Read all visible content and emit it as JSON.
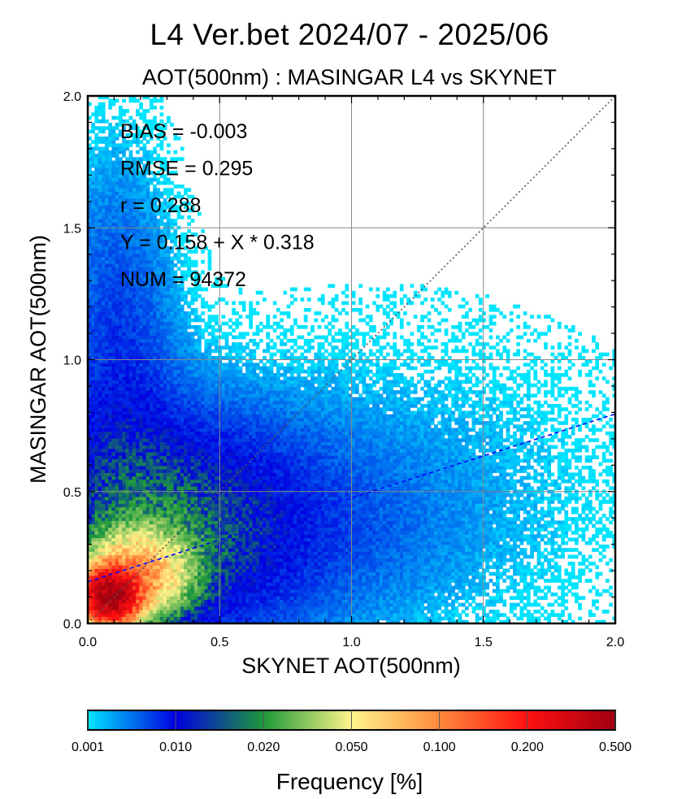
{
  "title": "L4  Ver.bet  2024/07 - 2025/06",
  "subtitle": "AOT(500nm) : MASINGAR L4 vs SKYNET",
  "chart_data": {
    "type": "heatmap",
    "xlabel": "SKYNET AOT(500nm)",
    "ylabel": "MASINGAR AOT(500nm)",
    "xlim": [
      0.0,
      2.0
    ],
    "ylim": [
      0.0,
      2.0
    ],
    "xticks": [
      "0.0",
      "0.5",
      "1.0",
      "1.5",
      "2.0"
    ],
    "yticks": [
      "0.0",
      "0.5",
      "1.0",
      "1.5",
      "2.0"
    ],
    "grid": true,
    "stats": [
      "BIAS = -0.003",
      "RMSE = 0.295",
      "r = 0.288",
      "Y = 0.158 + X * 0.318",
      "NUM = 94372"
    ],
    "regression": {
      "intercept": 0.158,
      "slope": 0.318,
      "color": "#0000ff",
      "style": "dashed"
    },
    "one_to_one": {
      "color": "#555555",
      "style": "dotted"
    },
    "colorbar": {
      "label": "Frequency [%]",
      "ticks": [
        "0.001",
        "0.010",
        "0.020",
        "0.050",
        "0.100",
        "0.200",
        "0.500"
      ],
      "colors": [
        "#00e5ff",
        "#0000e0",
        "#1d9a3a",
        "#fff48a",
        "#ff8a3c",
        "#ff1010",
        "#a00010"
      ]
    },
    "density_clusters": [
      {
        "x": 0.08,
        "y": 0.1,
        "sx": 0.06,
        "sy": 0.06,
        "peak": 0.45
      },
      {
        "x": 0.18,
        "y": 0.18,
        "sx": 0.12,
        "sy": 0.1,
        "peak": 0.08
      },
      {
        "x": 0.3,
        "y": 0.35,
        "sx": 0.3,
        "sy": 0.28,
        "peak": 0.012
      },
      {
        "x": 0.6,
        "y": 0.35,
        "sx": 0.45,
        "sy": 0.25,
        "peak": 0.004
      },
      {
        "x": 0.1,
        "y": 0.9,
        "sx": 0.15,
        "sy": 0.55,
        "peak": 0.006
      },
      {
        "x": 1.1,
        "y": 0.5,
        "sx": 0.7,
        "sy": 0.45,
        "peak": 0.0018
      }
    ]
  }
}
